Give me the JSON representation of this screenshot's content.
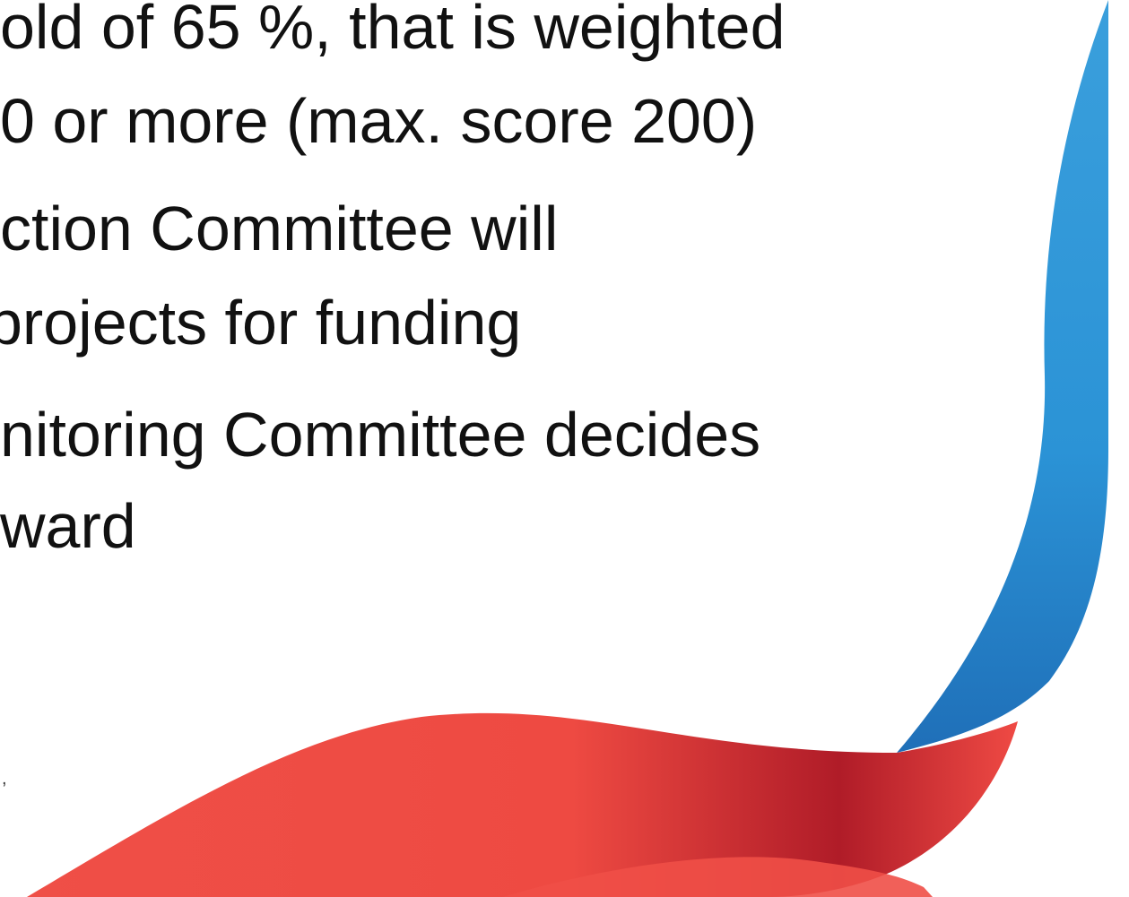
{
  "bullets": [
    {
      "lines": [
        "old of 65 %, that is weighted",
        "0 or more (max. score 200)"
      ]
    },
    {
      "lines": [
        "ction Committee will",
        "projects for funding"
      ]
    },
    {
      "lines": [
        "nitoring Committee decides",
        "ward"
      ]
    }
  ],
  "footnote": ","
}
